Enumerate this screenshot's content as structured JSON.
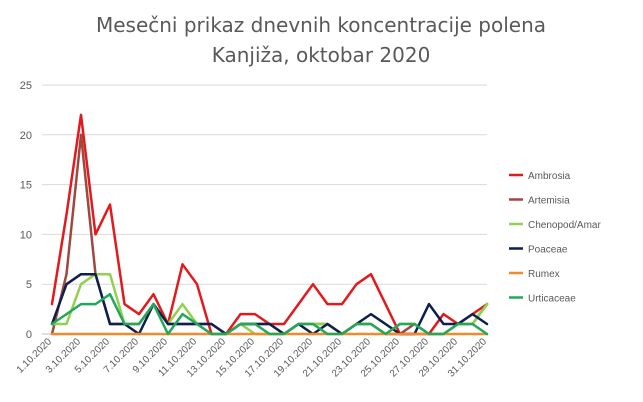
{
  "chart_data": {
    "type": "line",
    "title_line1": "Mesečni prikaz dnevnih koncentracije polena",
    "title_line2": "Kanjiža, oktobar 2020",
    "xlabel": "",
    "ylabel": "",
    "ylim": [
      0,
      25
    ],
    "yticks": [
      0,
      5,
      10,
      15,
      20,
      25
    ],
    "grid": "horizontal",
    "legend_position": "right",
    "x": [
      "1.10.2020",
      "2.10.2020",
      "3.10.2020",
      "4.10.2020",
      "5.10.2020",
      "6.10.2020",
      "7.10.2020",
      "8.10.2020",
      "9.10.2020",
      "10.10.2020",
      "11.10.2020",
      "12.10.2020",
      "13.10.2020",
      "14.10.2020",
      "15.10.2020",
      "16.10.2020",
      "17.10.2020",
      "18.10.2020",
      "19.10.2020",
      "20.10.2020",
      "21.10.2020",
      "22.10.2020",
      "23.10.2020",
      "24.10.2020",
      "25.10.2020",
      "26.10.2020",
      "27.10.2020",
      "28.10.2020",
      "29.10.2020",
      "30.10.2020",
      "31.10.2020"
    ],
    "xticks_shown": [
      "1.10.2020",
      "3.10.2020",
      "5.10.2020",
      "7.10.2020",
      "9.10.2020",
      "11.10.2020",
      "13.10.2020",
      "15.10.2020",
      "17.10.2020",
      "19.10.2020",
      "21.10.2020",
      "23.10.2020",
      "25.10.2020",
      "27.10.2020",
      "29.10.2020",
      "31.10.2020"
    ],
    "series": [
      {
        "name": "Ambrosia",
        "color": "#e31a1c",
        "values": [
          3,
          12,
          22,
          10,
          13,
          3,
          2,
          4,
          1,
          7,
          5,
          0,
          0,
          2,
          2,
          1,
          1,
          3,
          5,
          3,
          3,
          5,
          6,
          3,
          0,
          0,
          0,
          2,
          1,
          2,
          3
        ]
      },
      {
        "name": "Artemisia",
        "color": "#a0473f",
        "values": [
          0,
          6,
          20,
          6,
          1,
          1,
          1,
          3,
          1,
          1,
          1,
          1,
          0,
          1,
          1,
          1,
          0,
          1,
          1,
          1,
          0,
          1,
          1,
          0,
          0,
          1,
          0,
          0,
          1,
          1,
          3
        ]
      },
      {
        "name": "Chenopod/Amar",
        "color": "#92d050",
        "values": [
          1,
          1,
          5,
          6,
          6,
          1,
          1,
          3,
          1,
          3,
          1,
          0,
          0,
          1,
          0,
          0,
          0,
          1,
          1,
          1,
          0,
          1,
          1,
          0,
          1,
          1,
          0,
          0,
          1,
          1,
          3
        ]
      },
      {
        "name": "Poaceae",
        "color": "#0d1f4f",
        "values": [
          1,
          5,
          6,
          6,
          1,
          1,
          0,
          3,
          1,
          1,
          1,
          1,
          0,
          1,
          1,
          1,
          0,
          1,
          0,
          1,
          0,
          1,
          2,
          1,
          0,
          0,
          3,
          1,
          1,
          2,
          1
        ]
      },
      {
        "name": "Rumex",
        "color": "#f08a2c",
        "values": [
          0,
          0,
          0,
          0,
          0,
          0,
          0,
          0,
          0,
          0,
          0,
          0,
          0,
          0,
          0,
          0,
          0,
          0,
          0,
          0,
          0,
          0,
          0,
          0,
          0,
          0,
          0,
          0,
          0,
          0,
          0
        ]
      },
      {
        "name": "Urticaceae",
        "color": "#22a85b",
        "values": [
          1,
          2,
          3,
          3,
          4,
          1,
          1,
          3,
          0,
          2,
          1,
          0,
          0,
          1,
          1,
          0,
          0,
          1,
          1,
          0,
          0,
          1,
          1,
          0,
          1,
          1,
          0,
          0,
          1,
          1,
          0
        ]
      }
    ]
  }
}
